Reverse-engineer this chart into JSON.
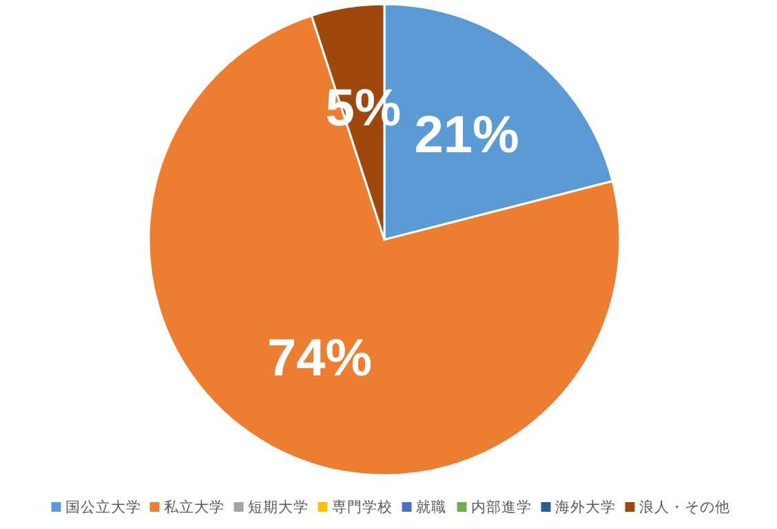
{
  "chart_data": {
    "type": "pie",
    "categories": [
      "国公立大学",
      "私立大学",
      "短期大学",
      "専門学校",
      "就職",
      "内部進学",
      "海外大学",
      "浪人・その他"
    ],
    "values": [
      21,
      74,
      0,
      0,
      0,
      0,
      0,
      5
    ],
    "colors": [
      "#5b9bd5",
      "#ed7d31",
      "#a5a5a5",
      "#ffc000",
      "#4472c4",
      "#70ad47",
      "#255e91",
      "#9e480e"
    ],
    "value_labels": [
      "21%",
      "74%",
      null,
      null,
      null,
      null,
      null,
      "5%"
    ],
    "legend": "bottom"
  }
}
